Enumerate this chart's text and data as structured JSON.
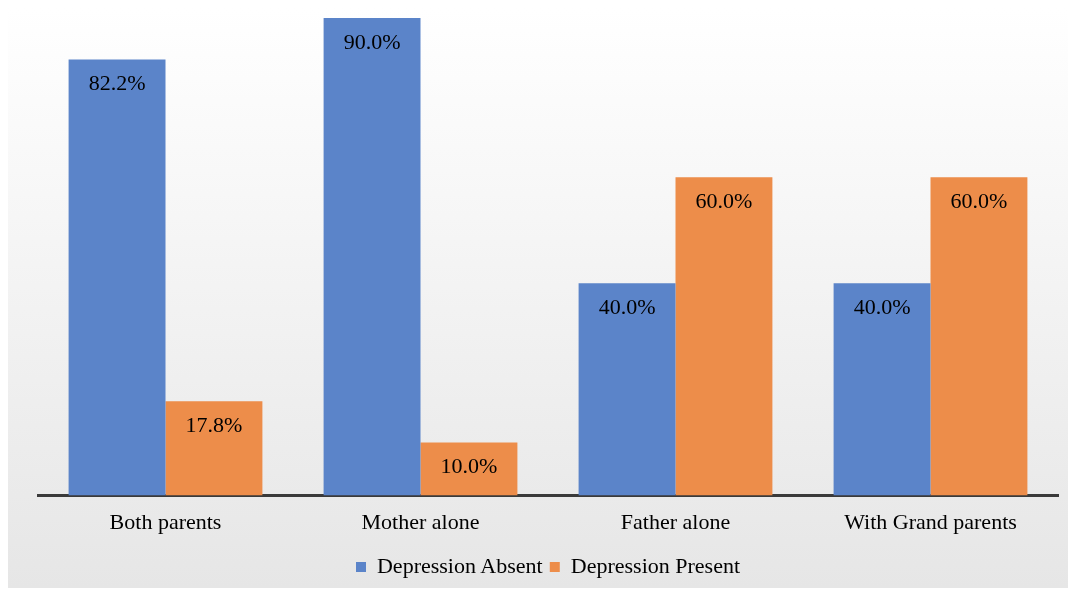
{
  "chart_data": {
    "type": "bar",
    "categories": [
      "Both parents",
      "Mother alone",
      "Father alone",
      "With Grand parents"
    ],
    "series": [
      {
        "name": "Depression Absent",
        "color": "#5b84c9",
        "values": [
          82.2,
          90.0,
          40.0,
          40.0
        ],
        "value_labels": [
          "82.2%",
          "90.0%",
          "40.0%",
          "40.0%"
        ]
      },
      {
        "name": "Depression Present",
        "color": "#ed8d4a",
        "values": [
          17.8,
          10.0,
          60.0,
          60.0
        ],
        "value_labels": [
          "17.8%",
          "10.0%",
          "60.0%",
          "60.0%"
        ]
      }
    ],
    "grid": false,
    "legend": "bottom"
  }
}
